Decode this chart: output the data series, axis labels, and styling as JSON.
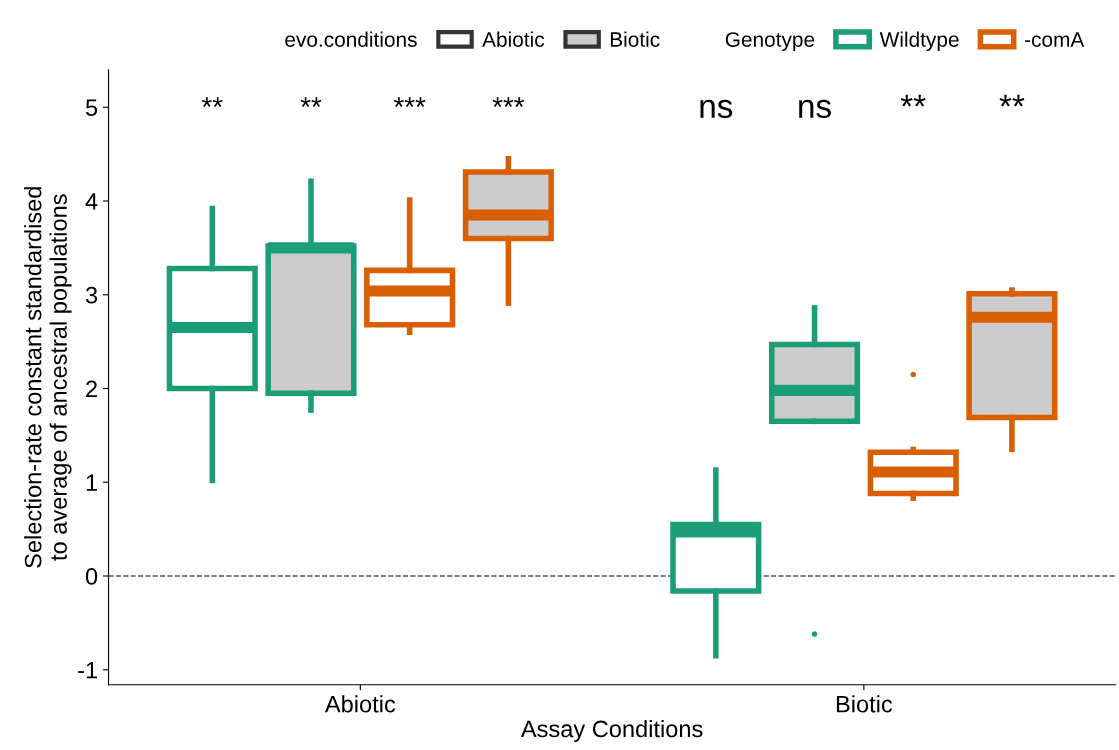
{
  "chart_data": {
    "type": "box",
    "xlabel": "Assay Conditions",
    "ylabel": "Selection-rate constant standardised\nto average of ancestral populations",
    "legend_title": [
      "evo.conditions",
      "Genotype"
    ],
    "legend": "top",
    "categories": [
      "Abiotic",
      "Biotic"
    ],
    "series": [
      {
        "name": "Abiotic",
        "color": "#333333",
        "colors": [
          "#ffffff",
          "#ffffff"
        ],
        "boxes": [
          null,
          null
        ]
      },
      {
        "name": "Biotic",
        "color": "#333333",
        "colors": [
          "#cccccc",
          "#cccccc"
        ],
        "boxes": [
          null,
          null
        ]
      },
      {
        "name": "Wildtype",
        "color": "#1b9e77",
        "colors": [
          "#ffffff",
          "#ffffff"
        ],
        "boxes": [
          {
            "low": 1.02,
            "q1": 2.0,
            "median": 2.65,
            "q3": 3.28,
            "high": 3.92
          },
          {
            "low": -0.85,
            "q1": -0.16,
            "median": 0.47,
            "q3": 0.55,
            "high": 1.13
          }
        ]
      },
      {
        "color": "#1b9e77",
        "colors": [
          "#cccccc",
          "#cccccc"
        ],
        "boxes": [
          {
            "low": 1.77,
            "q1": 1.95,
            "median": 3.5,
            "q3": 3.52,
            "high": 4.21
          },
          {
            "low": 1.65,
            "q1": 1.65,
            "median": 1.98,
            "q3": 2.47,
            "high": 2.86,
            "outliers": [
              -0.62
            ]
          }
        ]
      },
      {
        "name": "-comA",
        "color": "#d95f02",
        "colors": [
          "#ffffff",
          "#ffffff"
        ],
        "boxes": [
          {
            "low": 2.6,
            "q1": 2.68,
            "median": 3.04,
            "q3": 3.26,
            "high": 4.01
          },
          {
            "low": 0.83,
            "q1": 0.88,
            "median": 1.11,
            "q3": 1.32,
            "high": 1.35,
            "outliers": [
              2.15
            ]
          }
        ]
      },
      {
        "color": "#d95f02",
        "colors": [
          "#cccccc",
          "#cccccc"
        ],
        "boxes": [
          {
            "low": 2.91,
            "q1": 3.6,
            "median": 3.85,
            "q3": 4.31,
            "high": 4.45
          },
          {
            "low": 1.35,
            "q1": 1.69,
            "median": 2.76,
            "q3": 3.01,
            "high": 3.05
          }
        ]
      }
    ],
    "ylim": [
      -1.16,
      5.4
    ],
    "yticks": [
      -1,
      0,
      1,
      2,
      3,
      4,
      5
    ],
    "ref_lines": [
      {
        "axis": "y",
        "value": 0,
        "line_style": "dashed",
        "color": "#555555"
      }
    ],
    "annotations": [
      "**",
      "**",
      "***",
      "***",
      "ns",
      "ns",
      "**",
      "**"
    ],
    "grid": false
  }
}
